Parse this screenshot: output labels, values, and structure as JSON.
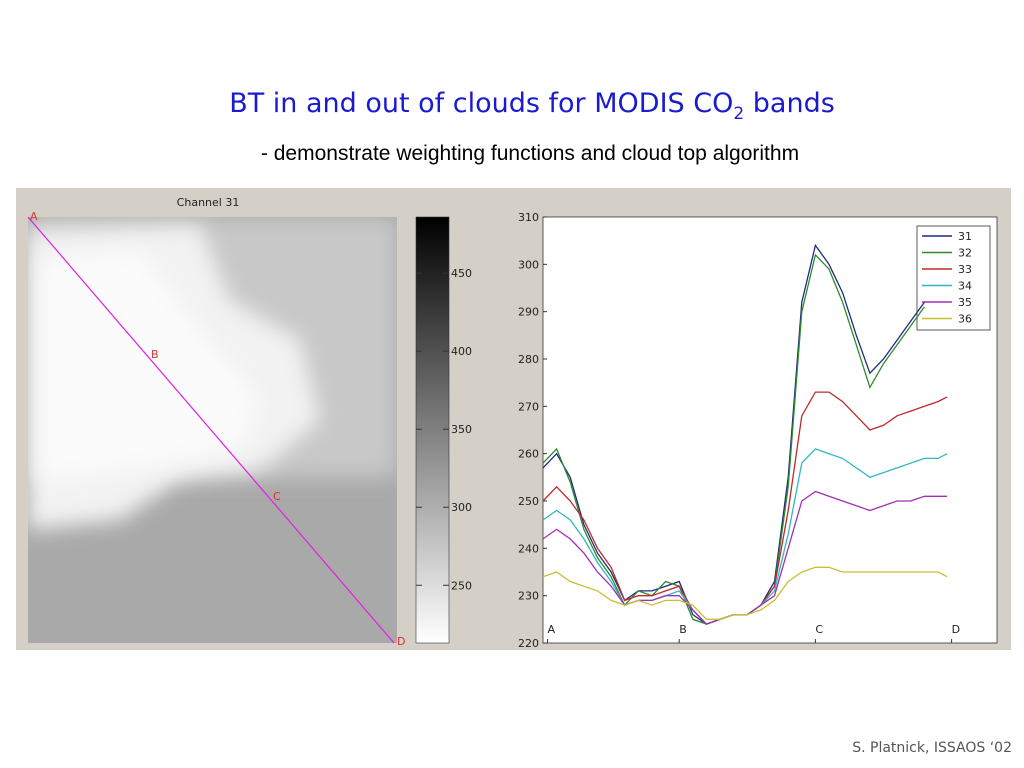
{
  "title_parts": [
    "BT in and out of clouds for MODIS CO",
    "2",
    " bands"
  ],
  "subtitle": "- demonstrate weighting functions and cloud top algorithm",
  "footer": "S. Platnick, ISSAOS ‘02",
  "chart_data": [
    {
      "type": "image",
      "title": "Channel 31",
      "annotations": [
        "A",
        "B",
        "C",
        "D"
      ],
      "colorbar": {
        "lim": [
          213,
          486
        ],
        "ticks": [
          250,
          300,
          350,
          400,
          450
        ]
      }
    },
    {
      "type": "line",
      "x": [
        0,
        3,
        6,
        9,
        12,
        15,
        18,
        21,
        24,
        27,
        30,
        33,
        36,
        39,
        42,
        45,
        48,
        51,
        54,
        57,
        60,
        63,
        66,
        69,
        72,
        75,
        78,
        81,
        84,
        87,
        89
      ],
      "xlim": [
        0,
        100
      ],
      "xticks": [
        {
          "value": 1,
          "label": "A"
        },
        {
          "value": 30,
          "label": "B"
        },
        {
          "value": 60,
          "label": "C"
        },
        {
          "value": 90,
          "label": "D"
        }
      ],
      "ylim": [
        220,
        310
      ],
      "yticks": [
        220,
        230,
        240,
        250,
        260,
        270,
        280,
        290,
        300,
        310
      ],
      "legend": "upper right",
      "series": [
        {
          "name": "31",
          "color": "#1f2a80",
          "values": [
            257,
            260,
            255,
            245,
            239,
            235,
            229,
            231,
            231,
            232,
            233,
            226,
            224,
            225,
            226,
            226,
            228,
            233,
            255,
            292,
            304,
            300,
            294,
            285,
            277,
            280,
            284,
            288,
            292,
            null,
            null
          ]
        },
        {
          "name": "32",
          "color": "#2e8b2e",
          "values": [
            258,
            261,
            254,
            244,
            238,
            234,
            228,
            231,
            230,
            233,
            232,
            225,
            224,
            225,
            226,
            226,
            228,
            232,
            253,
            290,
            302,
            299,
            292,
            283,
            274,
            279,
            283,
            287,
            291,
            null,
            null
          ]
        },
        {
          "name": "33",
          "color": "#c0282b",
          "values": [
            250,
            253,
            250,
            246,
            240,
            236,
            229,
            230,
            230,
            231,
            232,
            227,
            224,
            225,
            226,
            226,
            228,
            232,
            248,
            268,
            273,
            273,
            271,
            268,
            265,
            266,
            268,
            269,
            270,
            271,
            272
          ]
        },
        {
          "name": "34",
          "color": "#30b8c0",
          "values": [
            246,
            248,
            246,
            242,
            237,
            233,
            228,
            229,
            229,
            230,
            231,
            227,
            224,
            225,
            226,
            226,
            228,
            231,
            243,
            258,
            261,
            260,
            259,
            257,
            255,
            256,
            257,
            258,
            259,
            259,
            260
          ]
        },
        {
          "name": "35",
          "color": "#a030b0",
          "values": [
            242,
            244,
            242,
            239,
            235,
            232,
            228,
            229,
            229,
            230,
            230,
            227,
            224,
            225,
            226,
            226,
            228,
            230,
            240,
            250,
            252,
            251,
            250,
            249,
            248,
            249,
            250,
            250,
            251,
            251,
            251
          ]
        },
        {
          "name": "36",
          "color": "#c8c030",
          "values": [
            234,
            235,
            233,
            232,
            231,
            229,
            228,
            229,
            228,
            229,
            229,
            228,
            225,
            225,
            226,
            226,
            227,
            229,
            233,
            235,
            236,
            236,
            235,
            235,
            235,
            235,
            235,
            235,
            235,
            235,
            234
          ]
        }
      ]
    }
  ]
}
